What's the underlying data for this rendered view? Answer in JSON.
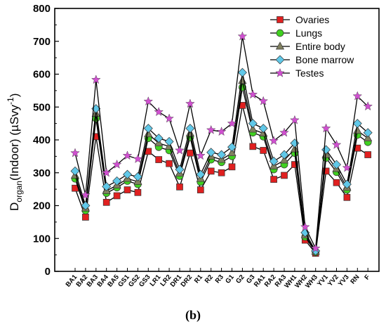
{
  "caption": "(b)",
  "chart_data": {
    "type": "line",
    "ylabel_main": "D",
    "ylabel_sub": "organ",
    "ylabel_rest": "(Indoor) (µSvy",
    "ylabel_sup": "-1",
    "ylabel_end": ")",
    "ylim": [
      0,
      800
    ],
    "yticks": [
      0,
      100,
      200,
      300,
      400,
      500,
      600,
      700,
      800
    ],
    "legend_position": "top-right",
    "categories": [
      "BA1",
      "BA2",
      "BA3",
      "BA4",
      "BA5",
      "GS1",
      "GS2",
      "GS3",
      "LR1",
      "LR2",
      "DR1",
      "DR2",
      "R1",
      "R2",
      "R3",
      "G1",
      "G2",
      "G3",
      "RA1",
      "RA2",
      "RA3",
      "WH1",
      "WH2",
      "WH3",
      "YV1",
      "YV2",
      "YV3",
      "RN",
      "F"
    ],
    "series": [
      {
        "name": "Ovaries",
        "color": "#e02020",
        "marker": "square",
        "values": [
          253,
          165,
          410,
          210,
          230,
          248,
          240,
          365,
          340,
          328,
          257,
          360,
          248,
          305,
          300,
          318,
          505,
          380,
          368,
          280,
          292,
          325,
          95,
          55,
          305,
          270,
          225,
          375,
          355
        ]
      },
      {
        "name": "Lungs",
        "color": "#40d020",
        "marker": "circle",
        "values": [
          282,
          185,
          465,
          238,
          255,
          275,
          265,
          405,
          378,
          368,
          290,
          408,
          272,
          340,
          332,
          350,
          560,
          422,
          410,
          310,
          325,
          360,
          105,
          58,
          345,
          302,
          248,
          415,
          393
        ]
      },
      {
        "name": "Entire body",
        "color": "#808060",
        "marker": "triangle",
        "values": [
          292,
          192,
          480,
          245,
          262,
          282,
          273,
          418,
          390,
          380,
          298,
          420,
          282,
          350,
          340,
          360,
          580,
          432,
          420,
          320,
          338,
          372,
          110,
          60,
          355,
          312,
          255,
          428,
          405
        ]
      },
      {
        "name": "Bone marrow",
        "color": "#60c8e8",
        "marker": "diamond",
        "values": [
          305,
          200,
          495,
          258,
          275,
          295,
          288,
          435,
          405,
          395,
          310,
          435,
          295,
          362,
          355,
          378,
          605,
          450,
          435,
          335,
          355,
          390,
          118,
          62,
          370,
          325,
          265,
          450,
          422
        ]
      },
      {
        "name": "Testes",
        "color": "#d050d0",
        "marker": "star",
        "values": [
          360,
          232,
          583,
          300,
          325,
          352,
          342,
          517,
          485,
          465,
          368,
          510,
          352,
          430,
          425,
          450,
          715,
          538,
          518,
          397,
          422,
          460,
          135,
          70,
          435,
          385,
          315,
          533,
          502
        ]
      }
    ]
  }
}
